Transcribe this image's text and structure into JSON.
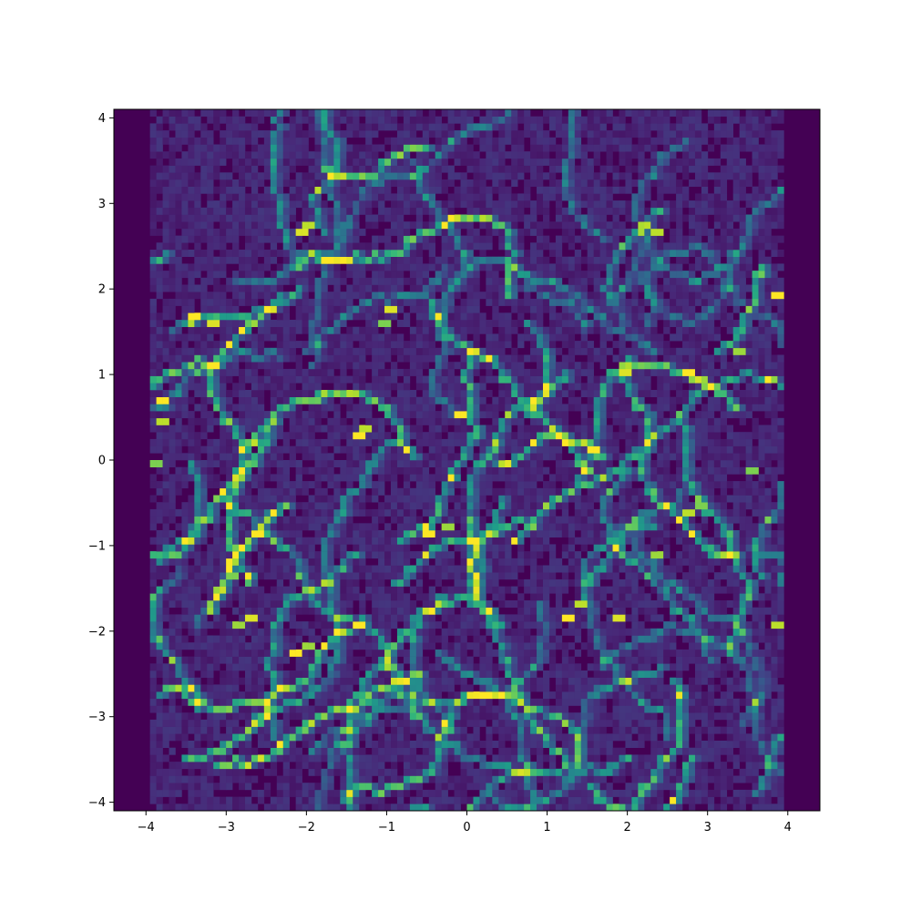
{
  "chart_data": {
    "type": "heatmap",
    "title": "",
    "xlabel": "",
    "ylabel": "",
    "xlim": [
      -4.4,
      4.4
    ],
    "ylim": [
      -4.1,
      4.1
    ],
    "x_ticks": [
      -4,
      -3,
      -2,
      -1,
      0,
      1,
      2,
      3,
      4
    ],
    "x_tick_labels": [
      "−4",
      "−3",
      "−2",
      "−1",
      "0",
      "1",
      "2",
      "3",
      "4"
    ],
    "y_ticks": [
      -4,
      -3,
      -2,
      -1,
      0,
      1,
      2,
      3,
      4
    ],
    "y_tick_labels": [
      "−4",
      "−3",
      "−2",
      "−1",
      "0",
      "1",
      "2",
      "3",
      "4"
    ],
    "colormap": "viridis",
    "grid": false,
    "x_bins": 100,
    "y_bins": 100,
    "data_x_range": [
      -3.95,
      3.95
    ],
    "data_y_range": [
      -4.1,
      4.1
    ],
    "hot_spots": [
      {
        "x": -3.4,
        "y": 1.65,
        "value": 1.0
      },
      {
        "x": -3.2,
        "y": 1.6,
        "value": 0.95
      },
      {
        "x": -3.85,
        "y": 0.7,
        "value": 1.0
      },
      {
        "x": -3.8,
        "y": 0.45,
        "value": 0.9
      },
      {
        "x": -3.9,
        "y": -0.05,
        "value": 0.8
      },
      {
        "x": -2.0,
        "y": 2.75,
        "value": 0.9
      },
      {
        "x": -2.1,
        "y": 2.65,
        "value": 0.95
      },
      {
        "x": -1.0,
        "y": 1.75,
        "value": 0.95
      },
      {
        "x": -1.05,
        "y": 1.6,
        "value": 0.8
      },
      {
        "x": -1.4,
        "y": 0.25,
        "value": 1.0
      },
      {
        "x": -1.3,
        "y": 0.35,
        "value": 0.9
      },
      {
        "x": -0.15,
        "y": 0.55,
        "value": 1.0
      },
      {
        "x": 0.4,
        "y": -0.05,
        "value": 0.9
      },
      {
        "x": -0.5,
        "y": -0.85,
        "value": 1.0
      },
      {
        "x": -0.3,
        "y": -0.8,
        "value": 0.85
      },
      {
        "x": -2.7,
        "y": -1.85,
        "value": 0.95
      },
      {
        "x": -2.85,
        "y": -1.9,
        "value": 0.85
      },
      {
        "x": -2.15,
        "y": -2.25,
        "value": 1.0
      },
      {
        "x": -2.05,
        "y": -2.15,
        "value": 0.85
      },
      {
        "x": -3.0,
        "y": -1.35,
        "value": 0.8
      },
      {
        "x": 1.25,
        "y": -1.85,
        "value": 1.0
      },
      {
        "x": 1.4,
        "y": -1.7,
        "value": 0.9
      },
      {
        "x": 1.85,
        "y": -1.85,
        "value": 0.95
      },
      {
        "x": 1.9,
        "y": 1.0,
        "value": 0.95
      },
      {
        "x": 2.7,
        "y": 1.05,
        "value": 1.0
      },
      {
        "x": 2.85,
        "y": 0.95,
        "value": 0.85
      },
      {
        "x": 2.3,
        "y": 2.65,
        "value": 0.9
      },
      {
        "x": 3.85,
        "y": 1.95,
        "value": 1.0
      },
      {
        "x": 3.35,
        "y": 1.25,
        "value": 0.85
      },
      {
        "x": 2.75,
        "y": -0.6,
        "value": 0.9
      },
      {
        "x": 2.9,
        "y": -0.5,
        "value": 0.8
      },
      {
        "x": 2.3,
        "y": -1.1,
        "value": 0.85
      },
      {
        "x": 3.85,
        "y": -1.9,
        "value": 0.9
      },
      {
        "x": 3.5,
        "y": -0.1,
        "value": 0.8
      }
    ],
    "colors": {
      "background": "#440154",
      "low": "#3b528b",
      "mid": "#21918c",
      "high": "#5ec962",
      "peak": "#fde725"
    }
  }
}
